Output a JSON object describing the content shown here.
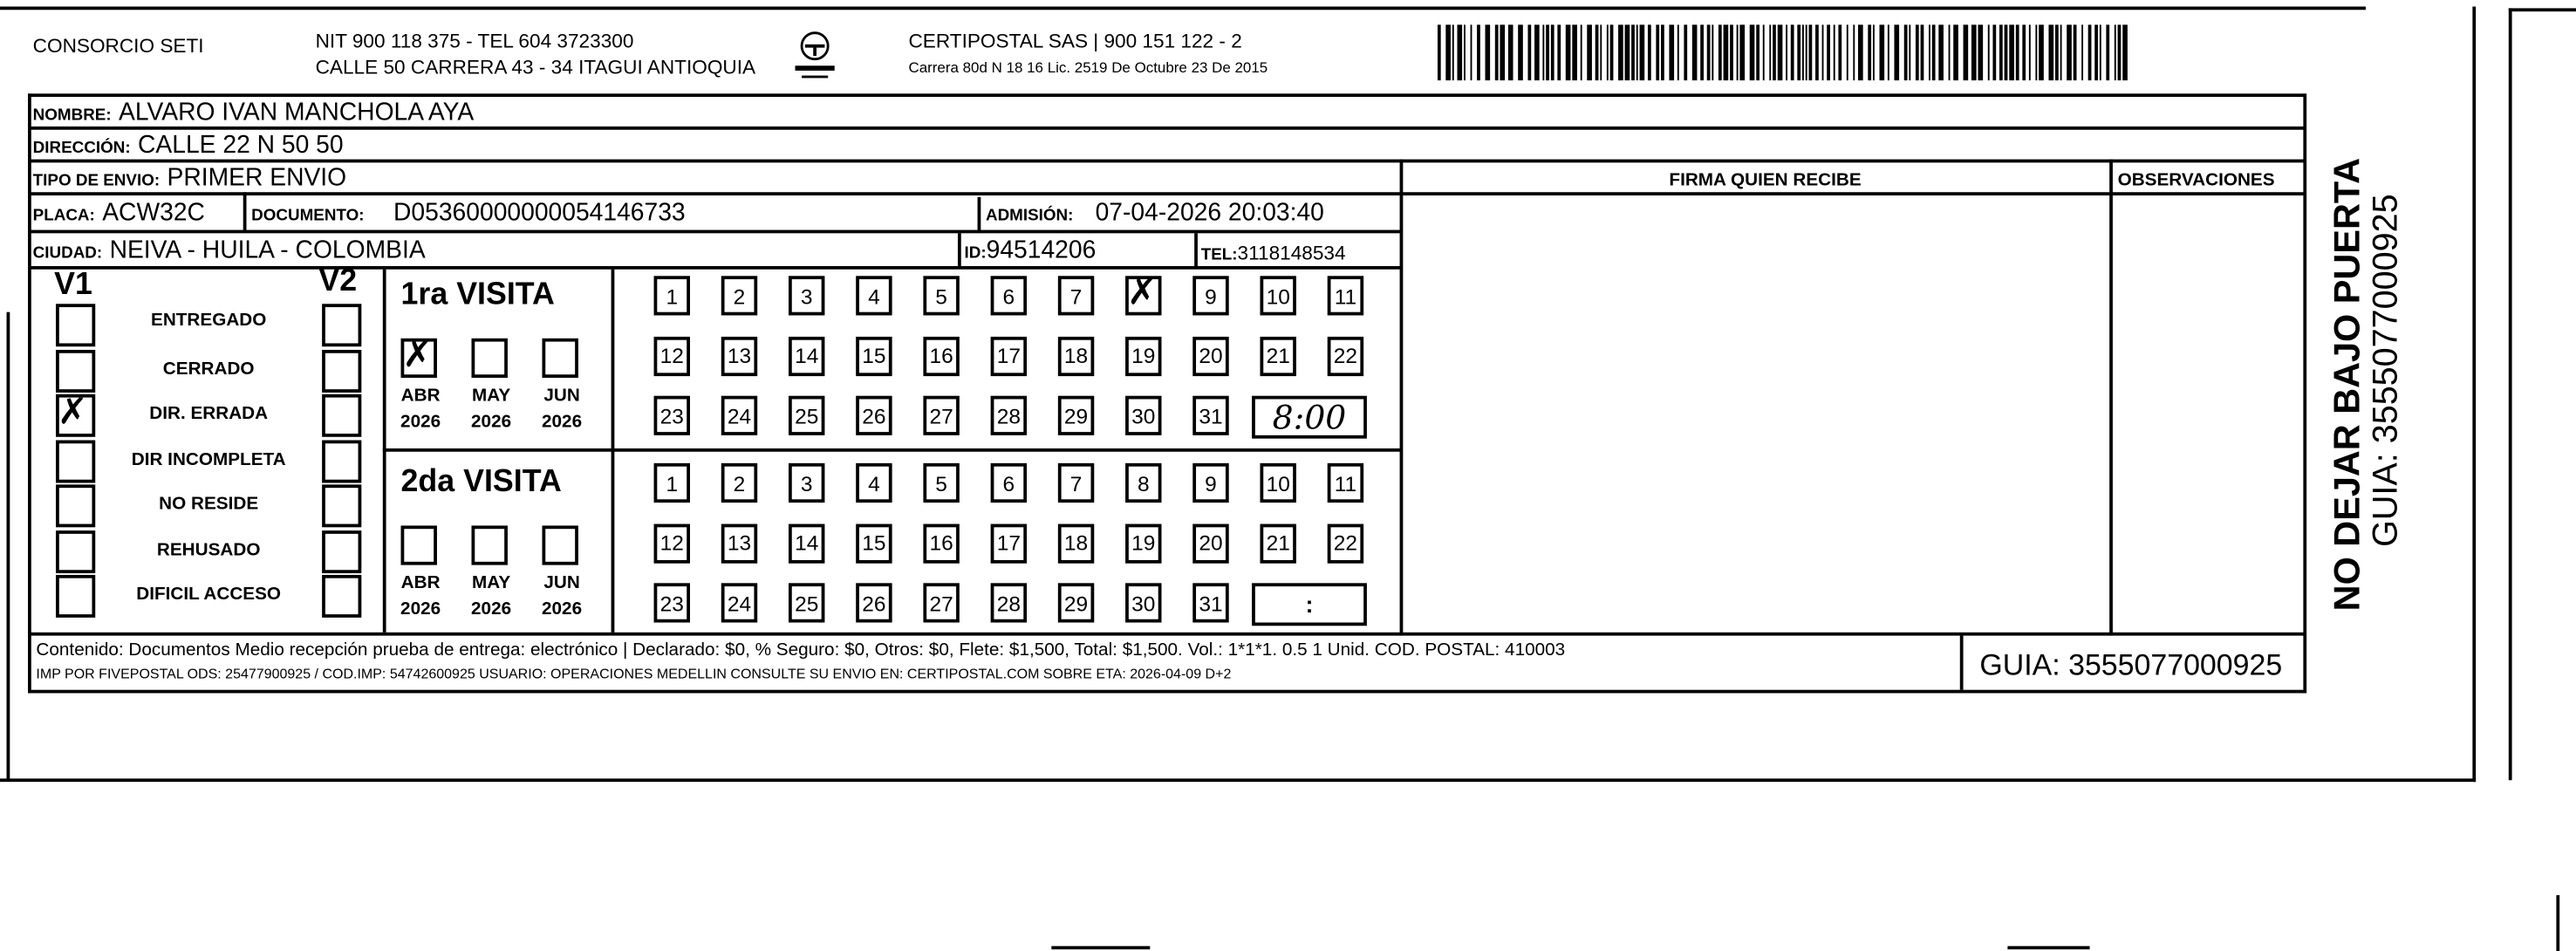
{
  "header": {
    "company": "CONSORCIO SETI",
    "nit_line": "NIT 900 118 375 - TEL 604 3723300",
    "address_line": "CALLE 50 CARRERA 43 - 34 ITAGUI ANTIOQUIA",
    "logo_text": "CERTIPOSTAL",
    "carrier_line": "CERTIPOSTAL SAS | 900 151 122 - 2",
    "license_line": "Carrera 80d N 18 16  Lic. 2519 De Octubre 23 De 2015",
    "barcode_value": "3555077000925"
  },
  "recipient": {
    "nombre_label": "NOMBRE:",
    "nombre": "ALVARO IVAN MANCHOLA AYA",
    "direccion_label": "DIRECCIÓN:",
    "direccion": "CALLE 22 N 50 50",
    "tipo_label": "TIPO DE ENVIO:",
    "tipo": "PRIMER ENVIO",
    "placa_label": "PLACA:",
    "placa": "ACW32C",
    "documento_label": "DOCUMENTO:",
    "documento": "D05360000000054146733",
    "admision_label": "ADMISIÓN:",
    "admision": "07-04-2026 20:03:40",
    "ciudad_label": "CIUDAD:",
    "ciudad": "NEIVA - HUILA - COLOMBIA",
    "id_label": "ID:",
    "id": "94514206",
    "tel_label": "TEL:",
    "tel": "3118148534"
  },
  "firma_header": "FIRMA QUIEN RECIBE",
  "observaciones_header": "OBSERVACIONES",
  "status": {
    "v1_label": "V1",
    "v2_label": "V2",
    "items": [
      {
        "label": "ENTREGADO",
        "v1": false,
        "v2": false
      },
      {
        "label": "CERRADO",
        "v1": false,
        "v2": false
      },
      {
        "label": "DIR. ERRADA",
        "v1": true,
        "v2": false
      },
      {
        "label": "DIR INCOMPLETA",
        "v1": false,
        "v2": false
      },
      {
        "label": "NO RESIDE",
        "v1": false,
        "v2": false
      },
      {
        "label": "REHUSADO",
        "v1": false,
        "v2": false
      },
      {
        "label": "DIFICIL ACCESO",
        "v1": false,
        "v2": false
      }
    ]
  },
  "visits": [
    {
      "title": "1ra VISITA",
      "months": [
        {
          "m": "ABR",
          "y": "2026",
          "checked": true
        },
        {
          "m": "MAY",
          "y": "2026",
          "checked": false
        },
        {
          "m": "JUN",
          "y": "2026",
          "checked": false
        }
      ],
      "checked_day": 8,
      "time": "8:00"
    },
    {
      "title": "2da VISITA",
      "months": [
        {
          "m": "ABR",
          "y": "2026",
          "checked": false
        },
        {
          "m": "MAY",
          "y": "2026",
          "checked": false
        },
        {
          "m": "JUN",
          "y": "2026",
          "checked": false
        }
      ],
      "checked_day": null,
      "time": ":"
    }
  ],
  "footer": {
    "contenido": "Contenido: Documentos Medio recepción prueba de entrega: electrónico | Declarado: $0, % Seguro: $0, Otros: $0, Flete: $1,500, Total: $1,500. Vol.: 1*1*1. 0.5  1 Unid. COD. POSTAL: 410003",
    "imp": "IMP POR FIVEPOSTAL ODS: 25477900925 / COD.IMP: 54742600925 USUARIO: OPERACIONES MEDELLIN CONSULTE SU ENVIO EN: CERTIPOSTAL.COM SOBRE ETA: 2026-04-09 D+2",
    "guia": "GUIA: 3555077000925"
  },
  "side": {
    "warning": "NO DEJAR BAJO PUERTA",
    "guia": "GUIA: 3555077000925"
  }
}
